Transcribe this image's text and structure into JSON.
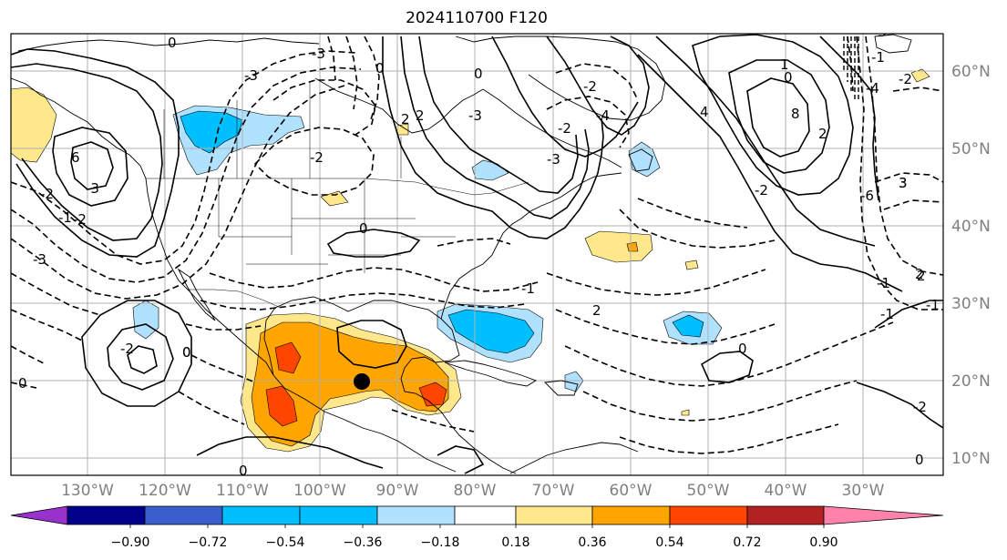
{
  "title": "2024110700 F120",
  "lon_labels": [
    "130°W",
    "120°W",
    "110°W",
    "100°W",
    "90°W",
    "80°W",
    "70°W",
    "60°W",
    "50°W",
    "40°W",
    "30°W"
  ],
  "lat_labels": [
    "60°N",
    "50°N",
    "40°N",
    "30°N",
    "20°N",
    "10°N"
  ],
  "colorbar": {
    "ticks": [
      "−0.90",
      "−0.72",
      "−0.54",
      "−0.36",
      "−0.18",
      "0.18",
      "0.36",
      "0.54",
      "0.72",
      "0.90"
    ],
    "colors": [
      "#9932cc",
      "#00008b",
      "#3a5fcd",
      "#00bfff",
      "#b0e2ff",
      "#ffffff",
      "#ffe78c",
      "#ffa500",
      "#ff4500",
      "#b22222",
      "#ff82ab"
    ]
  },
  "contour_labels": [
    "0",
    "-3",
    "-3",
    "2",
    "-2",
    "-3",
    "6",
    "-4",
    "8",
    "2",
    "3",
    "1",
    "2",
    "-2",
    "-1",
    "-2",
    "-3",
    "-3",
    "4",
    "-4",
    "0",
    "-3",
    "-6",
    "-1",
    "0",
    "0",
    "-3",
    "-2",
    "-1",
    "2",
    "-2",
    "-1",
    "-2",
    "-1",
    "2",
    "0",
    "0",
    "0",
    "0",
    "-2",
    "0",
    "-1",
    "3",
    "-2",
    "2",
    "-2",
    "0",
    "0"
  ]
}
